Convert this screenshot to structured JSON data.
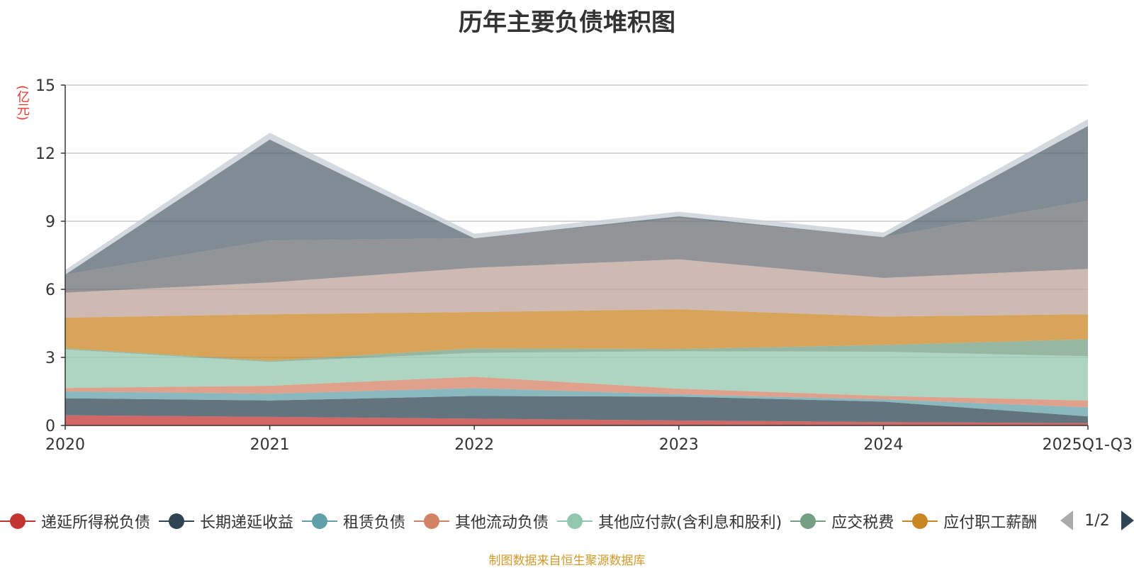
{
  "chart_data": {
    "type": "area",
    "title": "历年主要负债堆积图",
    "ylabel": "(亿元)",
    "ylim": [
      0,
      15
    ],
    "yticks": [
      0,
      3,
      6,
      9,
      12,
      15
    ],
    "categories": [
      "2020",
      "2021",
      "2022",
      "2023",
      "2024",
      "2025Q1-Q3"
    ],
    "stacked": true,
    "grid": true,
    "legend_position": "bottom",
    "series": [
      {
        "name": "递延所得税负债",
        "color": "#c23531",
        "values": [
          0.45,
          0.38,
          0.3,
          0.22,
          0.15,
          0.1
        ]
      },
      {
        "name": "长期递延收益",
        "color": "#2f4554",
        "values": [
          0.75,
          0.72,
          1.0,
          1.05,
          0.9,
          0.3
        ]
      },
      {
        "name": "租赁负债",
        "color": "#61a0a8",
        "values": [
          0.3,
          0.3,
          0.35,
          0.1,
          0.1,
          0.4
        ]
      },
      {
        "name": "其他流动负债",
        "color": "#d48265",
        "values": [
          0.15,
          0.35,
          0.5,
          0.25,
          0.15,
          0.3
        ]
      },
      {
        "name": "其他应付款(含利息和股利)",
        "color": "#91c7ae",
        "values": [
          1.7,
          1.05,
          1.05,
          1.65,
          1.95,
          1.95
        ]
      },
      {
        "name": "应交税费",
        "color": "#749f83",
        "values": [
          0.05,
          0.05,
          0.2,
          0.1,
          0.3,
          0.75
        ]
      },
      {
        "name": "应付职工薪酬",
        "color": "#ca8622",
        "values": [
          1.35,
          2.05,
          1.6,
          1.75,
          1.25,
          1.1
        ]
      },
      {
        "name": "",
        "color": "#bda29a",
        "values": [
          1.1,
          1.4,
          1.95,
          2.2,
          1.7,
          2.0
        ]
      },
      {
        "name": "",
        "color": "#6e7074",
        "values": [
          0.8,
          1.85,
          1.3,
          1.8,
          1.8,
          3.0
        ]
      },
      {
        "name": "",
        "color": "#546570",
        "values": [
          0.0,
          4.45,
          0.0,
          0.1,
          0.0,
          3.3
        ]
      },
      {
        "name": "",
        "color": "#c4ccd3",
        "values": [
          0.2,
          0.3,
          0.2,
          0.2,
          0.2,
          0.3
        ]
      }
    ]
  },
  "legend": {
    "visible_items": [
      {
        "label": "递延所得税负债",
        "color": "#c23531"
      },
      {
        "label": "长期递延收益",
        "color": "#2f4554"
      },
      {
        "label": "租赁负债",
        "color": "#61a0a8"
      },
      {
        "label": "其他流动负债",
        "color": "#d48265"
      },
      {
        "label": "其他应付款(含利息和股利)",
        "color": "#91c7ae"
      },
      {
        "label": "应交税费",
        "color": "#749f83"
      },
      {
        "label": "应付职工薪酬",
        "color": "#ca8622"
      }
    ],
    "page": "1/2"
  },
  "footer": {
    "source": "制图数据来自恒生聚源数据库"
  }
}
